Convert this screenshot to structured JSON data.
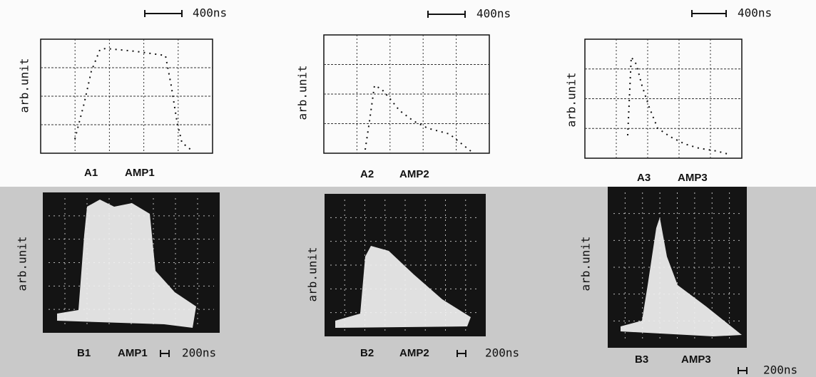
{
  "panels_top": [
    {
      "id": "A1",
      "name": "AMP1",
      "scale": "400ns",
      "ylabel": "arb.unit"
    },
    {
      "id": "A2",
      "name": "AMP2",
      "scale": "400ns",
      "ylabel": "arb.unit"
    },
    {
      "id": "A3",
      "name": "AMP3",
      "scale": "400ns",
      "ylabel": "arb.unit"
    }
  ],
  "panels_bottom": [
    {
      "id": "B1",
      "name": "AMP1",
      "scale": "200ns",
      "ylabel": "arb.unit"
    },
    {
      "id": "B2",
      "name": "AMP2",
      "scale": "200ns",
      "ylabel": "arb.unit"
    },
    {
      "id": "B3",
      "name": "AMP3",
      "scale": "200ns",
      "ylabel": "arb.unit"
    }
  ]
}
